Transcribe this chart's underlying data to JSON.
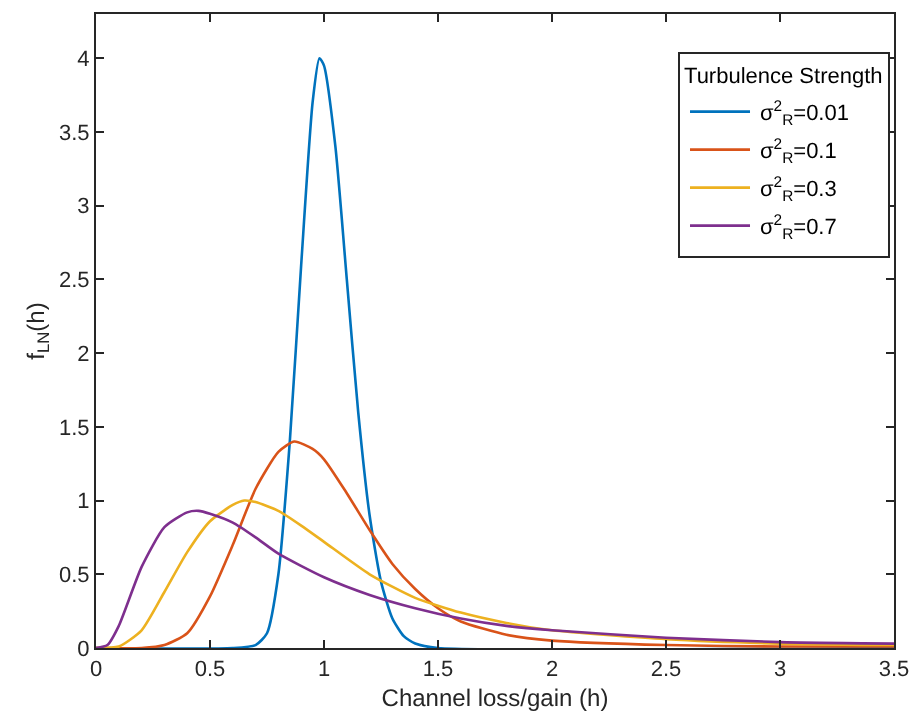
{
  "chart_data": {
    "type": "line",
    "xlabel": "Channel loss/gain (h)",
    "ylabel": "f$_{LN}$(h)",
    "legend_title": "Turbulence Strength",
    "xlim": [
      0,
      3.5
    ],
    "xticks": [
      0,
      0.5,
      1,
      1.5,
      2,
      2.5,
      3,
      3.5
    ],
    "ylim": [
      0,
      4.3
    ],
    "yticks": [
      0,
      0.5,
      1,
      1.5,
      2,
      2.5,
      3,
      3.5,
      4
    ],
    "legend": "top right",
    "marker": "none",
    "line_style": "solid",
    "series": [
      {
        "name": "σ$^{2}$$_{R}$=0.01",
        "color": "#0072bd",
        "x": [
          0,
          0.6,
          0.7,
          0.75,
          0.8,
          0.85,
          0.9,
          0.95,
          0.98,
          1.0,
          1.05,
          1.1,
          1.15,
          1.2,
          1.25,
          1.3,
          1.35,
          1.4,
          1.5,
          3.5
        ],
        "values": [
          0,
          0,
          0.02,
          0.1,
          0.5,
          1.4,
          2.6,
          3.7,
          4.0,
          3.95,
          3.4,
          2.5,
          1.6,
          0.9,
          0.45,
          0.2,
          0.08,
          0.03,
          0,
          0
        ]
      },
      {
        "name": "σ$^{2}$$_{R}$=0.1",
        "color": "#d95319",
        "x": [
          0,
          0.2,
          0.3,
          0.4,
          0.5,
          0.6,
          0.7,
          0.8,
          0.87,
          0.95,
          1.0,
          1.1,
          1.2,
          1.3,
          1.4,
          1.5,
          1.6,
          1.8,
          2.0,
          2.5,
          3.0,
          3.5
        ],
        "values": [
          0,
          0,
          0.02,
          0.1,
          0.35,
          0.7,
          1.08,
          1.33,
          1.4,
          1.35,
          1.28,
          1.05,
          0.8,
          0.57,
          0.4,
          0.27,
          0.18,
          0.09,
          0.05,
          0.02,
          0.01,
          0.01
        ]
      },
      {
        "name": "σ$^{2}$$_{R}$=0.3",
        "color": "#edb120",
        "x": [
          0,
          0.1,
          0.2,
          0.3,
          0.4,
          0.5,
          0.6,
          0.65,
          0.7,
          0.8,
          0.9,
          1.0,
          1.2,
          1.4,
          1.6,
          1.8,
          2.0,
          2.5,
          3.0,
          3.5
        ],
        "values": [
          0,
          0.01,
          0.12,
          0.38,
          0.65,
          0.86,
          0.97,
          1.0,
          0.99,
          0.93,
          0.83,
          0.72,
          0.5,
          0.34,
          0.24,
          0.17,
          0.12,
          0.06,
          0.03,
          0.02
        ]
      },
      {
        "name": "σ$^{2}$$_{R}$=0.7",
        "color": "#7e2f8e",
        "x": [
          0,
          0.05,
          0.1,
          0.2,
          0.3,
          0.4,
          0.45,
          0.5,
          0.6,
          0.7,
          0.8,
          1.0,
          1.2,
          1.4,
          1.6,
          1.8,
          2.0,
          2.5,
          3.0,
          3.5
        ],
        "values": [
          0,
          0.02,
          0.15,
          0.55,
          0.82,
          0.92,
          0.93,
          0.91,
          0.85,
          0.75,
          0.64,
          0.48,
          0.36,
          0.27,
          0.2,
          0.15,
          0.12,
          0.07,
          0.04,
          0.03
        ]
      }
    ]
  }
}
